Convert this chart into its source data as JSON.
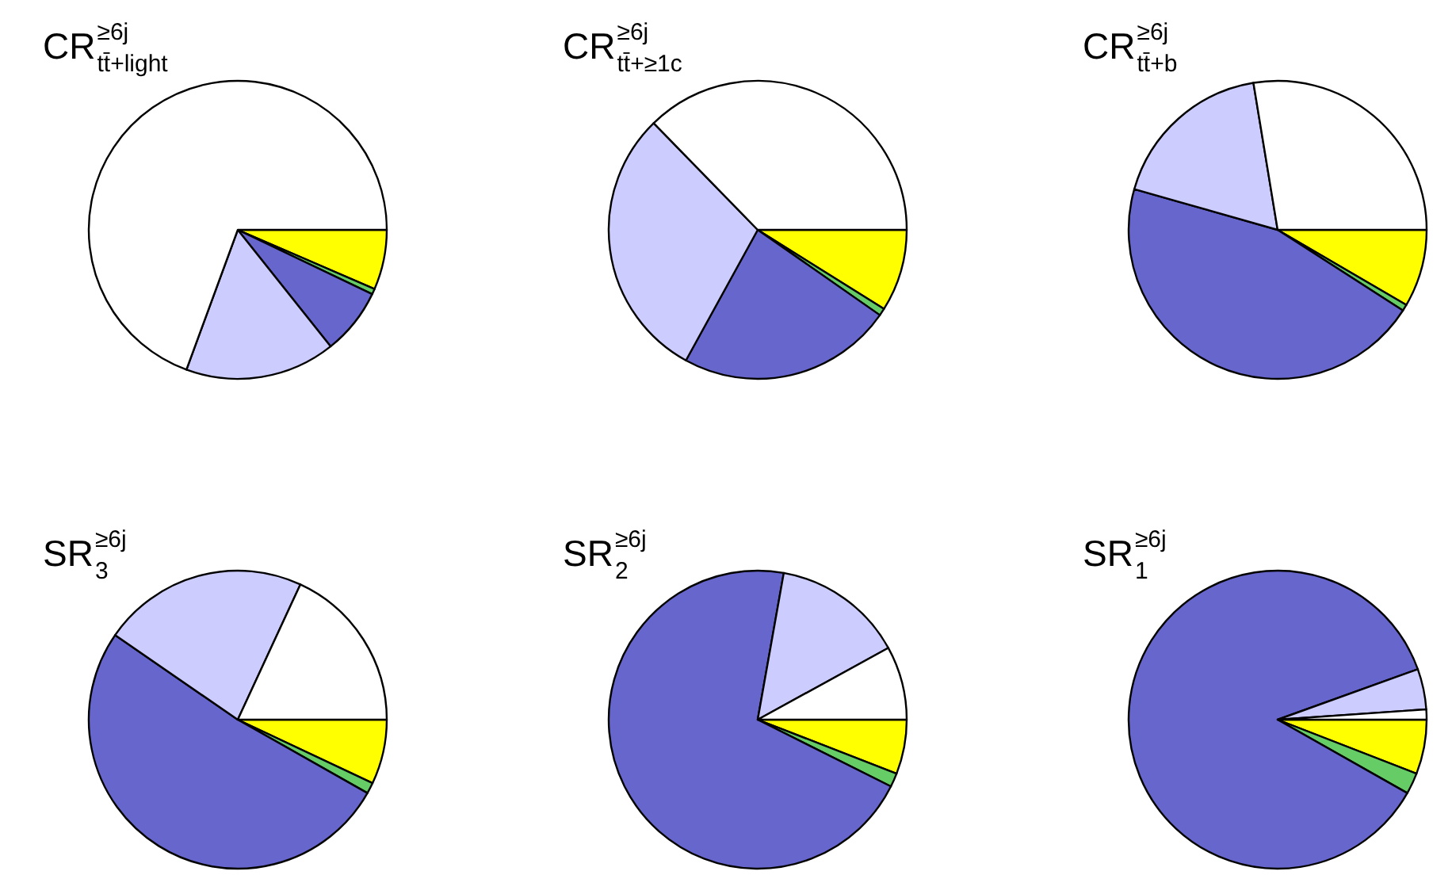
{
  "chart_data": [
    {
      "type": "pie",
      "title": "CR$^{≥6j}$$_{tt̄+light}$",
      "categories": [
        null,
        null,
        null,
        null,
        null
      ],
      "values": [
        6.5,
        0.6,
        7.2,
        16.3,
        69.4
      ],
      "colors": [
        "#ffff00",
        "#66cc66",
        "#6666cc",
        "#ccccff",
        "#ffffff"
      ]
    },
    {
      "type": "pie",
      "title": "CR$^{≥6j}$$_{tt̄+≥1c}$",
      "categories": [
        null,
        null,
        null,
        null,
        null
      ],
      "values": [
        8.9,
        0.8,
        23.3,
        29.7,
        37.3
      ],
      "colors": [
        "#ffff00",
        "#66cc66",
        "#6666cc",
        "#ccccff",
        "#ffffff"
      ]
    },
    {
      "type": "pie",
      "title": "CR$^{≥6j}$$_{tt̄+b}$",
      "categories": [
        null,
        null,
        null,
        null,
        null
      ],
      "values": [
        8.4,
        0.7,
        45.3,
        18.0,
        27.6
      ],
      "colors": [
        "#ffff00",
        "#66cc66",
        "#6666cc",
        "#ccccff",
        "#ffffff"
      ]
    },
    {
      "type": "pie",
      "title": "SR$^{≥6j}$$_{3}$",
      "categories": [
        null,
        null,
        null,
        null,
        null
      ],
      "values": [
        7.0,
        1.2,
        51.4,
        22.3,
        18.1
      ],
      "colors": [
        "#ffff00",
        "#66cc66",
        "#6666cc",
        "#ccccff",
        "#ffffff"
      ]
    },
    {
      "type": "pie",
      "title": "SR$^{≥6j}$$_{2}$",
      "categories": [
        null,
        null,
        null,
        null,
        null
      ],
      "values": [
        5.9,
        1.5,
        70.4,
        14.2,
        8.0
      ],
      "colors": [
        "#ffff00",
        "#66cc66",
        "#6666cc",
        "#ccccff",
        "#ffffff"
      ]
    },
    {
      "type": "pie",
      "title": "SR$^{≥6j}$$_{1}$",
      "categories": [
        null,
        null,
        null,
        null,
        null
      ],
      "values": [
        5.9,
        2.3,
        86.3,
        4.4,
        1.1
      ],
      "colors": [
        "#ffff00",
        "#66cc66",
        "#6666cc",
        "#ccccff",
        "#ffffff"
      ]
    }
  ]
}
